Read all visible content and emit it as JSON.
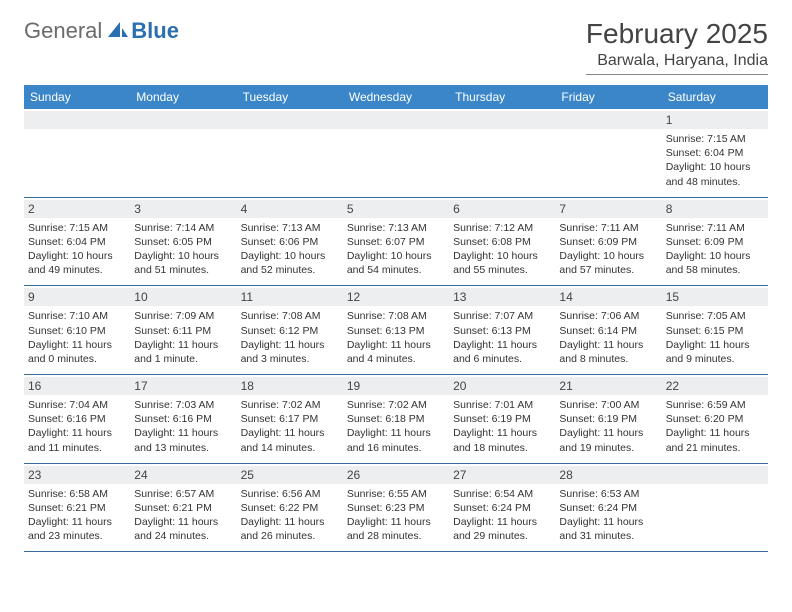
{
  "logo": {
    "text1": "General",
    "text2": "Blue"
  },
  "title": {
    "month": "February 2025",
    "location": "Barwala, Haryana, India"
  },
  "colors": {
    "header_bg": "#3a86c8",
    "header_fg": "#ffffff",
    "week_border": "#3a6a9a",
    "daynum_bg": "#eceeef",
    "logo_gray": "#6b6b6b",
    "logo_blue": "#2c6fb0"
  },
  "dayHeaders": [
    "Sunday",
    "Monday",
    "Tuesday",
    "Wednesday",
    "Thursday",
    "Friday",
    "Saturday"
  ],
  "weeks": [
    [
      {
        "day": "",
        "sunrise": "",
        "sunset": "",
        "daylight": ""
      },
      {
        "day": "",
        "sunrise": "",
        "sunset": "",
        "daylight": ""
      },
      {
        "day": "",
        "sunrise": "",
        "sunset": "",
        "daylight": ""
      },
      {
        "day": "",
        "sunrise": "",
        "sunset": "",
        "daylight": ""
      },
      {
        "day": "",
        "sunrise": "",
        "sunset": "",
        "daylight": ""
      },
      {
        "day": "",
        "sunrise": "",
        "sunset": "",
        "daylight": ""
      },
      {
        "day": "1",
        "sunrise": "Sunrise: 7:15 AM",
        "sunset": "Sunset: 6:04 PM",
        "daylight": "Daylight: 10 hours and 48 minutes."
      }
    ],
    [
      {
        "day": "2",
        "sunrise": "Sunrise: 7:15 AM",
        "sunset": "Sunset: 6:04 PM",
        "daylight": "Daylight: 10 hours and 49 minutes."
      },
      {
        "day": "3",
        "sunrise": "Sunrise: 7:14 AM",
        "sunset": "Sunset: 6:05 PM",
        "daylight": "Daylight: 10 hours and 51 minutes."
      },
      {
        "day": "4",
        "sunrise": "Sunrise: 7:13 AM",
        "sunset": "Sunset: 6:06 PM",
        "daylight": "Daylight: 10 hours and 52 minutes."
      },
      {
        "day": "5",
        "sunrise": "Sunrise: 7:13 AM",
        "sunset": "Sunset: 6:07 PM",
        "daylight": "Daylight: 10 hours and 54 minutes."
      },
      {
        "day": "6",
        "sunrise": "Sunrise: 7:12 AM",
        "sunset": "Sunset: 6:08 PM",
        "daylight": "Daylight: 10 hours and 55 minutes."
      },
      {
        "day": "7",
        "sunrise": "Sunrise: 7:11 AM",
        "sunset": "Sunset: 6:09 PM",
        "daylight": "Daylight: 10 hours and 57 minutes."
      },
      {
        "day": "8",
        "sunrise": "Sunrise: 7:11 AM",
        "sunset": "Sunset: 6:09 PM",
        "daylight": "Daylight: 10 hours and 58 minutes."
      }
    ],
    [
      {
        "day": "9",
        "sunrise": "Sunrise: 7:10 AM",
        "sunset": "Sunset: 6:10 PM",
        "daylight": "Daylight: 11 hours and 0 minutes."
      },
      {
        "day": "10",
        "sunrise": "Sunrise: 7:09 AM",
        "sunset": "Sunset: 6:11 PM",
        "daylight": "Daylight: 11 hours and 1 minute."
      },
      {
        "day": "11",
        "sunrise": "Sunrise: 7:08 AM",
        "sunset": "Sunset: 6:12 PM",
        "daylight": "Daylight: 11 hours and 3 minutes."
      },
      {
        "day": "12",
        "sunrise": "Sunrise: 7:08 AM",
        "sunset": "Sunset: 6:13 PM",
        "daylight": "Daylight: 11 hours and 4 minutes."
      },
      {
        "day": "13",
        "sunrise": "Sunrise: 7:07 AM",
        "sunset": "Sunset: 6:13 PM",
        "daylight": "Daylight: 11 hours and 6 minutes."
      },
      {
        "day": "14",
        "sunrise": "Sunrise: 7:06 AM",
        "sunset": "Sunset: 6:14 PM",
        "daylight": "Daylight: 11 hours and 8 minutes."
      },
      {
        "day": "15",
        "sunrise": "Sunrise: 7:05 AM",
        "sunset": "Sunset: 6:15 PM",
        "daylight": "Daylight: 11 hours and 9 minutes."
      }
    ],
    [
      {
        "day": "16",
        "sunrise": "Sunrise: 7:04 AM",
        "sunset": "Sunset: 6:16 PM",
        "daylight": "Daylight: 11 hours and 11 minutes."
      },
      {
        "day": "17",
        "sunrise": "Sunrise: 7:03 AM",
        "sunset": "Sunset: 6:16 PM",
        "daylight": "Daylight: 11 hours and 13 minutes."
      },
      {
        "day": "18",
        "sunrise": "Sunrise: 7:02 AM",
        "sunset": "Sunset: 6:17 PM",
        "daylight": "Daylight: 11 hours and 14 minutes."
      },
      {
        "day": "19",
        "sunrise": "Sunrise: 7:02 AM",
        "sunset": "Sunset: 6:18 PM",
        "daylight": "Daylight: 11 hours and 16 minutes."
      },
      {
        "day": "20",
        "sunrise": "Sunrise: 7:01 AM",
        "sunset": "Sunset: 6:19 PM",
        "daylight": "Daylight: 11 hours and 18 minutes."
      },
      {
        "day": "21",
        "sunrise": "Sunrise: 7:00 AM",
        "sunset": "Sunset: 6:19 PM",
        "daylight": "Daylight: 11 hours and 19 minutes."
      },
      {
        "day": "22",
        "sunrise": "Sunrise: 6:59 AM",
        "sunset": "Sunset: 6:20 PM",
        "daylight": "Daylight: 11 hours and 21 minutes."
      }
    ],
    [
      {
        "day": "23",
        "sunrise": "Sunrise: 6:58 AM",
        "sunset": "Sunset: 6:21 PM",
        "daylight": "Daylight: 11 hours and 23 minutes."
      },
      {
        "day": "24",
        "sunrise": "Sunrise: 6:57 AM",
        "sunset": "Sunset: 6:21 PM",
        "daylight": "Daylight: 11 hours and 24 minutes."
      },
      {
        "day": "25",
        "sunrise": "Sunrise: 6:56 AM",
        "sunset": "Sunset: 6:22 PM",
        "daylight": "Daylight: 11 hours and 26 minutes."
      },
      {
        "day": "26",
        "sunrise": "Sunrise: 6:55 AM",
        "sunset": "Sunset: 6:23 PM",
        "daylight": "Daylight: 11 hours and 28 minutes."
      },
      {
        "day": "27",
        "sunrise": "Sunrise: 6:54 AM",
        "sunset": "Sunset: 6:24 PM",
        "daylight": "Daylight: 11 hours and 29 minutes."
      },
      {
        "day": "28",
        "sunrise": "Sunrise: 6:53 AM",
        "sunset": "Sunset: 6:24 PM",
        "daylight": "Daylight: 11 hours and 31 minutes."
      },
      {
        "day": "",
        "sunrise": "",
        "sunset": "",
        "daylight": ""
      }
    ]
  ]
}
